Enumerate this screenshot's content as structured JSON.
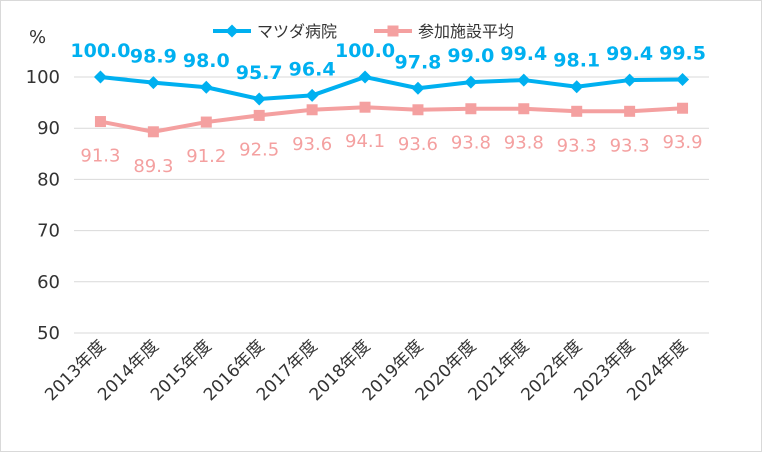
{
  "chart_data": {
    "type": "line",
    "title": "",
    "xlabel": "",
    "ylabel": "%",
    "ylim": [
      50,
      100
    ],
    "yticks": [
      50,
      60,
      70,
      80,
      90,
      100
    ],
    "grid": true,
    "legend_position": "top",
    "categories": [
      "2013年度",
      "2014年度",
      "2015年度",
      "2016年度",
      "2017年度",
      "2018年度",
      "2019年度",
      "2020年度",
      "2021年度",
      "2022年度",
      "2023年度",
      "2024年度"
    ],
    "series": [
      {
        "name": "マツダ病院",
        "color": "#00b0f0",
        "marker": "diamond",
        "values": [
          100.0,
          98.9,
          98.0,
          95.7,
          96.4,
          100.0,
          97.8,
          99.0,
          99.4,
          98.1,
          99.4,
          99.5
        ],
        "labels": [
          "100.0",
          "98.9",
          "98.0",
          "95.7",
          "96.4",
          "100.0",
          "97.8",
          "99.0",
          "99.4",
          "98.1",
          "99.4",
          "99.5"
        ]
      },
      {
        "name": "参加施設平均",
        "color": "#f4a0a0",
        "marker": "square",
        "values": [
          91.3,
          89.3,
          91.2,
          92.5,
          93.6,
          94.1,
          93.6,
          93.8,
          93.8,
          93.3,
          93.3,
          93.9
        ],
        "labels": [
          "91.3",
          "89.3",
          "91.2",
          "92.5",
          "93.6",
          "94.1",
          "93.6",
          "93.8",
          "93.8",
          "93.3",
          "93.3",
          "93.9"
        ]
      }
    ]
  }
}
